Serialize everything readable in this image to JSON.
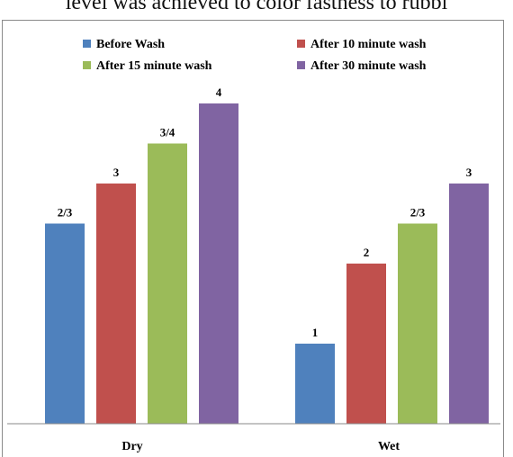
{
  "caption_fragment": "level was achieved to color fastness to rubbi",
  "chart_data": {
    "type": "bar",
    "categories": [
      "Dry",
      "Wet"
    ],
    "ylim": [
      0,
      4.4
    ],
    "grid": false,
    "legend_position": "top",
    "series": [
      {
        "name": "Before Wash",
        "color": "#4f81bd",
        "values": [
          2.5,
          1
        ],
        "labels": [
          "2/3",
          "1"
        ]
      },
      {
        "name": "After 10 minute wash",
        "color": "#c0504d",
        "values": [
          3,
          2
        ],
        "labels": [
          "3",
          "2"
        ]
      },
      {
        "name": "After 15 minute wash",
        "color": "#9bbb59",
        "values": [
          3.5,
          2.5
        ],
        "labels": [
          "3/4",
          "2/3"
        ]
      },
      {
        "name": "After 30 minute wash",
        "color": "#8064a2",
        "values": [
          4,
          3
        ],
        "labels": [
          "4",
          "3"
        ]
      }
    ]
  }
}
